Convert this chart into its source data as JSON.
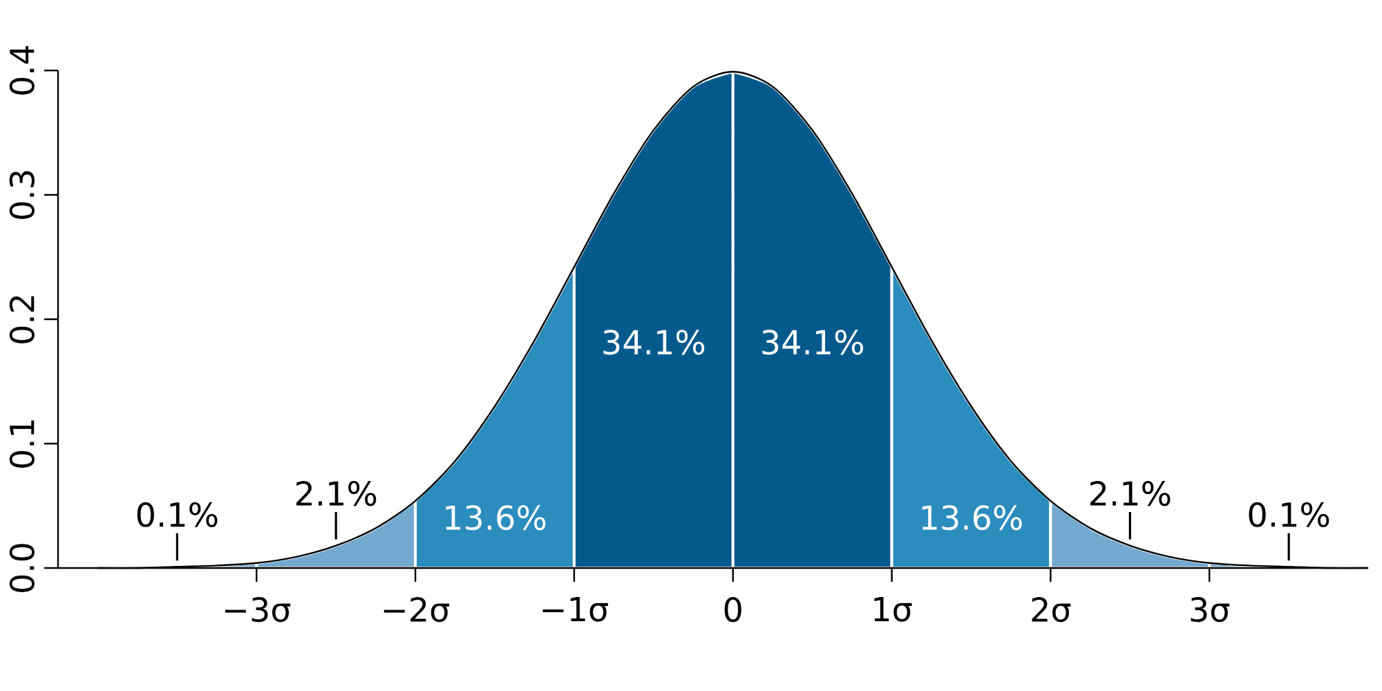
{
  "chart_data": {
    "type": "area",
    "xlim": [
      -4.25,
      4
    ],
    "ylim": [
      0,
      0.4
    ],
    "xticks": [
      {
        "value": -3,
        "label": "−3σ"
      },
      {
        "value": -2,
        "label": "−2σ"
      },
      {
        "value": -1,
        "label": "−1σ"
      },
      {
        "value": 0,
        "label": "0"
      },
      {
        "value": 1,
        "label": "1σ"
      },
      {
        "value": 2,
        "label": "2σ"
      },
      {
        "value": 3,
        "label": "3σ"
      }
    ],
    "yticks": [
      {
        "value": 0,
        "label": "0.0"
      },
      {
        "value": 0.1,
        "label": "0.1"
      },
      {
        "value": 0.2,
        "label": "0.2"
      },
      {
        "value": 0.3,
        "label": "0.3"
      },
      {
        "value": 0.4,
        "label": "0.4"
      }
    ],
    "series": [
      {
        "color": "#74a9cf",
        "x": [
          -4,
          -3.75,
          -3.5,
          -3.25,
          -3
        ],
        "values": [
          0.0,
          0.0,
          0.001,
          0.002,
          0.004
        ]
      },
      {
        "color": "#74a9cf",
        "x": [
          -3,
          -2.75,
          -2.5,
          -2.25,
          -2
        ],
        "values": [
          0.004,
          0.009,
          0.018,
          0.032,
          0.054
        ]
      },
      {
        "color": "#2b8cbe",
        "x": [
          -2,
          -1.75,
          -1.5,
          -1.25,
          -1
        ],
        "values": [
          0.054,
          0.086,
          0.13,
          0.183,
          0.242
        ]
      },
      {
        "color": "#045a8d",
        "x": [
          -1,
          -0.75,
          -0.5,
          -0.25,
          0
        ],
        "values": [
          0.242,
          0.301,
          0.352,
          0.387,
          0.399
        ]
      },
      {
        "color": "#045a8d",
        "x": [
          0,
          0.25,
          0.5,
          0.75,
          1
        ],
        "values": [
          0.399,
          0.387,
          0.352,
          0.301,
          0.242
        ]
      },
      {
        "color": "#2b8cbe",
        "x": [
          1,
          1.25,
          1.5,
          1.75,
          2
        ],
        "values": [
          0.242,
          0.183,
          0.13,
          0.086,
          0.054
        ]
      },
      {
        "color": "#74a9cf",
        "x": [
          2,
          2.25,
          2.5,
          2.75,
          3
        ],
        "values": [
          0.054,
          0.032,
          0.018,
          0.009,
          0.004
        ]
      },
      {
        "color": "#74a9cf",
        "x": [
          3,
          3.25,
          3.5,
          3.75,
          4
        ],
        "values": [
          0.004,
          0.002,
          0.001,
          0.0,
          0.0
        ]
      },
      {
        "type": "line",
        "color": "#000000",
        "x": [
          -4,
          -3.75,
          -3.5,
          -3.25,
          -3,
          -2.75,
          -2.5,
          -2.25,
          -2,
          -1.75,
          -1.5,
          -1.25,
          -1,
          -0.75,
          -0.5,
          -0.25,
          0,
          0.25,
          0.5,
          0.75,
          1,
          1.25,
          1.5,
          1.75,
          2,
          2.25,
          2.5,
          2.75,
          3,
          3.25,
          3.5,
          3.75,
          4
        ],
        "values": [
          0.0,
          0.0,
          0.001,
          0.002,
          0.004,
          0.009,
          0.018,
          0.032,
          0.054,
          0.086,
          0.13,
          0.183,
          0.242,
          0.301,
          0.352,
          0.387,
          0.399,
          0.387,
          0.352,
          0.301,
          0.242,
          0.183,
          0.13,
          0.086,
          0.054,
          0.032,
          0.018,
          0.009,
          0.004,
          0.002,
          0.001,
          0.0,
          0.0
        ]
      }
    ],
    "annotations": [
      "0.1%",
      "2.1%",
      "13.6%",
      "34.1%",
      "34.1%",
      "13.6%",
      "2.1%",
      "0.1%"
    ]
  }
}
